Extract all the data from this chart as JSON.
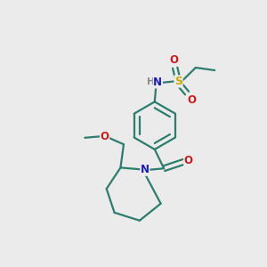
{
  "background_color": "#ebebeb",
  "bond_color": "#2d7d6e",
  "N_color": "#1a1acc",
  "O_color": "#cc1a1a",
  "S_color": "#ccaa00",
  "H_color": "#888888",
  "line_width": 1.6,
  "figsize": [
    3.0,
    3.0
  ],
  "dpi": 100,
  "xlim": [
    0,
    10
  ],
  "ylim": [
    0,
    10
  ]
}
